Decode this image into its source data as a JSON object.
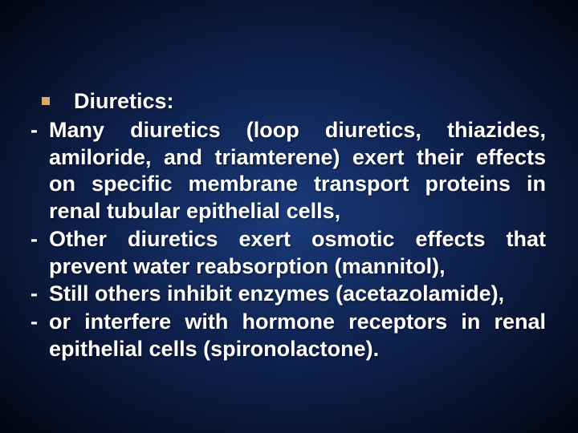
{
  "slide": {
    "background_center": "#1a3a7a",
    "background_mid": "#0d1f4a",
    "background_edge": "#020510",
    "text_color": "#ffffff",
    "bullet_color": "#d9a76a",
    "font_family": "Arial",
    "font_weight": "bold",
    "font_size_pt": 20,
    "title": "Diuretics:",
    "items": [
      {
        "marker": "-",
        "text": "Many diuretics (loop diuretics, thiazides, amiloride, and triamterene) exert their effects on specific membrane transport proteins in renal tubular epithelial cells,"
      },
      {
        "marker": "-",
        "text": "Other diuretics exert osmotic effects that prevent water reabsorption (mannitol),"
      },
      {
        "marker": "-",
        "text": "Still others inhibit enzymes (acetazolamide),"
      },
      {
        "marker": "-",
        "text": "or interfere with hormone receptors in renal epithelial cells (spironolactone)."
      }
    ]
  }
}
